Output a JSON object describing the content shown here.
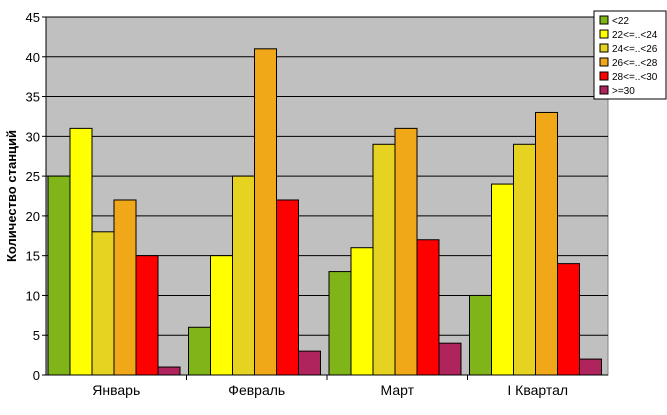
{
  "chart_data": {
    "type": "bar",
    "title": "",
    "xlabel": "",
    "ylabel": "Количество станций",
    "ylim": [
      0,
      45
    ],
    "yticks": [
      0,
      5,
      10,
      15,
      20,
      25,
      30,
      35,
      40,
      45
    ],
    "grid": true,
    "legend_position": "top-right",
    "categories": [
      "Январь",
      "Февраль",
      "Март",
      "I Квартал"
    ],
    "series": [
      {
        "name": "<22",
        "color": "#7fb519",
        "values": [
          25,
          6,
          13,
          10
        ]
      },
      {
        "name": "22<=..<24",
        "color": "#ffff00",
        "values": [
          31,
          15,
          16,
          24
        ]
      },
      {
        "name": "24<=..<26",
        "color": "#e6d321",
        "values": [
          18,
          25,
          29,
          29
        ]
      },
      {
        "name": "26<=..<28",
        "color": "#f0a818",
        "values": [
          22,
          41,
          31,
          33
        ]
      },
      {
        "name": "28<=..<30",
        "color": "#ff0000",
        "values": [
          15,
          22,
          17,
          14
        ]
      },
      {
        "name": ">=30",
        "color": "#b0245e",
        "values": [
          1,
          3,
          4,
          2
        ]
      }
    ],
    "plot_background": "#c0c0c0"
  }
}
